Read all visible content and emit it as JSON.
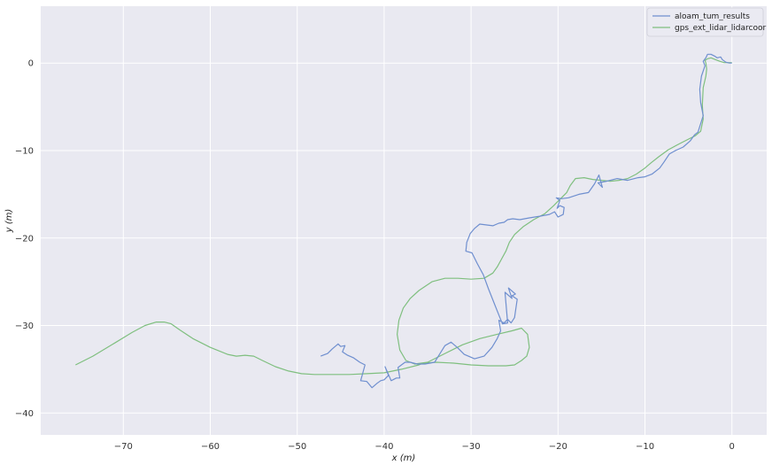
{
  "chart_data": {
    "type": "line",
    "title": "",
    "xlabel": "x (m)",
    "ylabel": "y (m)",
    "xlim": [
      -79.5,
      4
    ],
    "ylim": [
      -42.5,
      6.5
    ],
    "xticks": [
      -70,
      -60,
      -50,
      -40,
      -30,
      -20,
      -10,
      0
    ],
    "yticks": [
      0,
      -10,
      -20,
      -30,
      -40
    ],
    "xtick_labels": [
      "−70",
      "−60",
      "−50",
      "−40",
      "−30",
      "−20",
      "−10",
      "0"
    ],
    "ytick_labels": [
      "0",
      "−10",
      "−20",
      "−30",
      "−40"
    ],
    "grid": true,
    "background": "#e9e9f1",
    "legend_position": "top-right",
    "series": [
      {
        "name": "aloam_tum_results",
        "color": "#6f8fcf",
        "x": [
          -47.3,
          -46.5,
          -46.0,
          -45.3,
          -45.0,
          -44.5,
          -44.8,
          -44.2,
          -43.5,
          -42.8,
          -42.2,
          -42.7,
          -42.0,
          -41.4,
          -40.8,
          -40.4,
          -40.0,
          -39.5,
          -39.9,
          -39.2,
          -38.6,
          -38.2,
          -38.4,
          -37.6,
          -37.0,
          -36.2,
          -35.3,
          -34.2,
          -33.7,
          -33.0,
          -32.3,
          -31.6,
          -30.8,
          -29.6,
          -28.5,
          -27.6,
          -27.0,
          -26.6,
          -26.8,
          -26.2,
          -25.8,
          -25.4,
          -25.0,
          -24.7,
          -25.3,
          -24.9,
          -25.7,
          -25.3,
          -26.1,
          -25.8,
          -26.4,
          -26.8,
          -27.4,
          -28.0,
          -28.6,
          -29.3,
          -29.9,
          -30.6,
          -30.5,
          -30.1,
          -29.6,
          -29.0,
          -28.3,
          -27.5,
          -26.8,
          -26.2,
          -25.8,
          -25.2,
          -24.4,
          -23.3,
          -22.1,
          -21.0,
          -20.4,
          -20.0,
          -19.4,
          -19.3,
          -19.8,
          -20.1,
          -19.8,
          -20.2,
          -19.6,
          -18.8,
          -17.6,
          -16.5,
          -15.8,
          -15.3,
          -14.9,
          -15.4,
          -14.4,
          -13.2,
          -12.0,
          -10.8,
          -10.0,
          -9.2,
          -8.3,
          -7.8,
          -7.2,
          -6.5,
          -5.6,
          -4.8,
          -4.3,
          -3.9,
          -3.3,
          -3.6,
          -3.7,
          -3.5,
          -3.1,
          -3.3,
          -3.0,
          -2.8,
          -2.4,
          -2.0,
          -1.7,
          -1.3,
          -1.1,
          -0.7,
          -0.3,
          0.0
        ],
        "y": [
          -33.5,
          -33.2,
          -32.7,
          -32.1,
          -32.4,
          -32.3,
          -33.0,
          -33.4,
          -33.7,
          -34.2,
          -34.5,
          -36.3,
          -36.4,
          -37.1,
          -36.6,
          -36.3,
          -36.2,
          -35.7,
          -34.7,
          -36.3,
          -36.0,
          -36.0,
          -34.8,
          -34.2,
          -34.2,
          -34.4,
          -34.4,
          -34.2,
          -33.4,
          -32.3,
          -31.9,
          -32.5,
          -33.3,
          -33.8,
          -33.5,
          -32.5,
          -31.5,
          -30.6,
          -29.4,
          -29.7,
          -29.3,
          -29.7,
          -29.1,
          -27.0,
          -26.6,
          -26.4,
          -25.7,
          -26.9,
          -26.2,
          -29.7,
          -29.8,
          -28.8,
          -27.3,
          -25.8,
          -24.2,
          -22.9,
          -21.7,
          -21.5,
          -20.5,
          -19.5,
          -18.9,
          -18.4,
          -18.5,
          -18.6,
          -18.3,
          -18.2,
          -17.9,
          -17.8,
          -17.9,
          -17.7,
          -17.5,
          -17.3,
          -17.0,
          -17.6,
          -17.3,
          -16.5,
          -16.3,
          -16.6,
          -15.7,
          -15.4,
          -15.5,
          -15.4,
          -15.0,
          -14.8,
          -13.8,
          -12.8,
          -14.2,
          -13.7,
          -13.5,
          -13.2,
          -13.4,
          -13.1,
          -13.0,
          -12.7,
          -12.0,
          -11.3,
          -10.4,
          -10.0,
          -9.6,
          -8.9,
          -8.2,
          -7.9,
          -6.0,
          -4.5,
          -3.0,
          -1.5,
          -0.3,
          0.2,
          0.6,
          1.0,
          1.0,
          0.8,
          0.6,
          0.7,
          0.4,
          0.1,
          0.0,
          0.0
        ]
      },
      {
        "name": "gps_ext_lidar_lidarcoor",
        "color": "#7fbf7f",
        "x": [
          -75.5,
          -73.5,
          -71.0,
          -69.0,
          -67.5,
          -66.2,
          -65.3,
          -64.5,
          -63.5,
          -62.0,
          -60.0,
          -58.0,
          -57.0,
          -56.0,
          -55.0,
          -54.0,
          -52.5,
          -51.0,
          -49.5,
          -48.0,
          -46.0,
          -44.0,
          -42.0,
          -40.0,
          -38.0,
          -36.0,
          -35.5,
          -34.0,
          -32.0,
          -30.0,
          -28.0,
          -26.0,
          -25.0,
          -24.2,
          -23.6,
          -23.3,
          -23.5,
          -24.2,
          -25.3,
          -27.0,
          -29.0,
          -31.0,
          -33.0,
          -35.0,
          -36.5,
          -37.5,
          -38.2,
          -38.5,
          -38.3,
          -37.8,
          -37.0,
          -36.0,
          -34.5,
          -33.0,
          -31.5,
          -30.0,
          -28.5,
          -27.5,
          -27.0,
          -26.5,
          -26.0,
          -25.6,
          -25.0,
          -24.0,
          -22.8,
          -21.5,
          -20.5,
          -19.6,
          -19.0,
          -18.6,
          -18.0,
          -17.0,
          -16.0,
          -15.0,
          -14.0,
          -13.0,
          -12.0,
          -11.0,
          -10.0,
          -9.3,
          -8.4,
          -7.3,
          -6.0,
          -5.0,
          -4.2,
          -3.6,
          -3.3,
          -3.4,
          -3.3,
          -3.0,
          -2.9,
          -3.0,
          -3.1,
          -2.8,
          -2.4,
          -1.9,
          -1.4,
          -0.9,
          -0.5,
          -0.2,
          0.0
        ],
        "y": [
          -34.5,
          -33.5,
          -32.0,
          -30.8,
          -30.0,
          -29.6,
          -29.6,
          -29.8,
          -30.5,
          -31.5,
          -32.5,
          -33.3,
          -33.5,
          -33.4,
          -33.5,
          -34.0,
          -34.7,
          -35.2,
          -35.5,
          -35.6,
          -35.6,
          -35.6,
          -35.5,
          -35.4,
          -35.0,
          -34.5,
          -34.3,
          -34.2,
          -34.3,
          -34.5,
          -34.6,
          -34.6,
          -34.5,
          -34.0,
          -33.5,
          -32.5,
          -31.0,
          -30.3,
          -30.6,
          -31.0,
          -31.5,
          -32.2,
          -33.2,
          -34.2,
          -34.4,
          -34.0,
          -32.8,
          -31.0,
          -29.4,
          -28.0,
          -26.9,
          -26.0,
          -25.0,
          -24.6,
          -24.6,
          -24.7,
          -24.6,
          -24.0,
          -23.3,
          -22.4,
          -21.5,
          -20.5,
          -19.6,
          -18.7,
          -17.9,
          -17.2,
          -16.3,
          -15.4,
          -14.8,
          -14.0,
          -13.2,
          -13.1,
          -13.3,
          -13.4,
          -13.5,
          -13.4,
          -13.2,
          -12.7,
          -12.0,
          -11.4,
          -10.7,
          -9.9,
          -9.2,
          -8.7,
          -8.3,
          -7.8,
          -6.4,
          -4.8,
          -2.8,
          -1.5,
          -0.7,
          0.0,
          0.3,
          0.5,
          0.6,
          0.4,
          0.2,
          0.05,
          0.05,
          0.05,
          0.05
        ]
      }
    ]
  }
}
